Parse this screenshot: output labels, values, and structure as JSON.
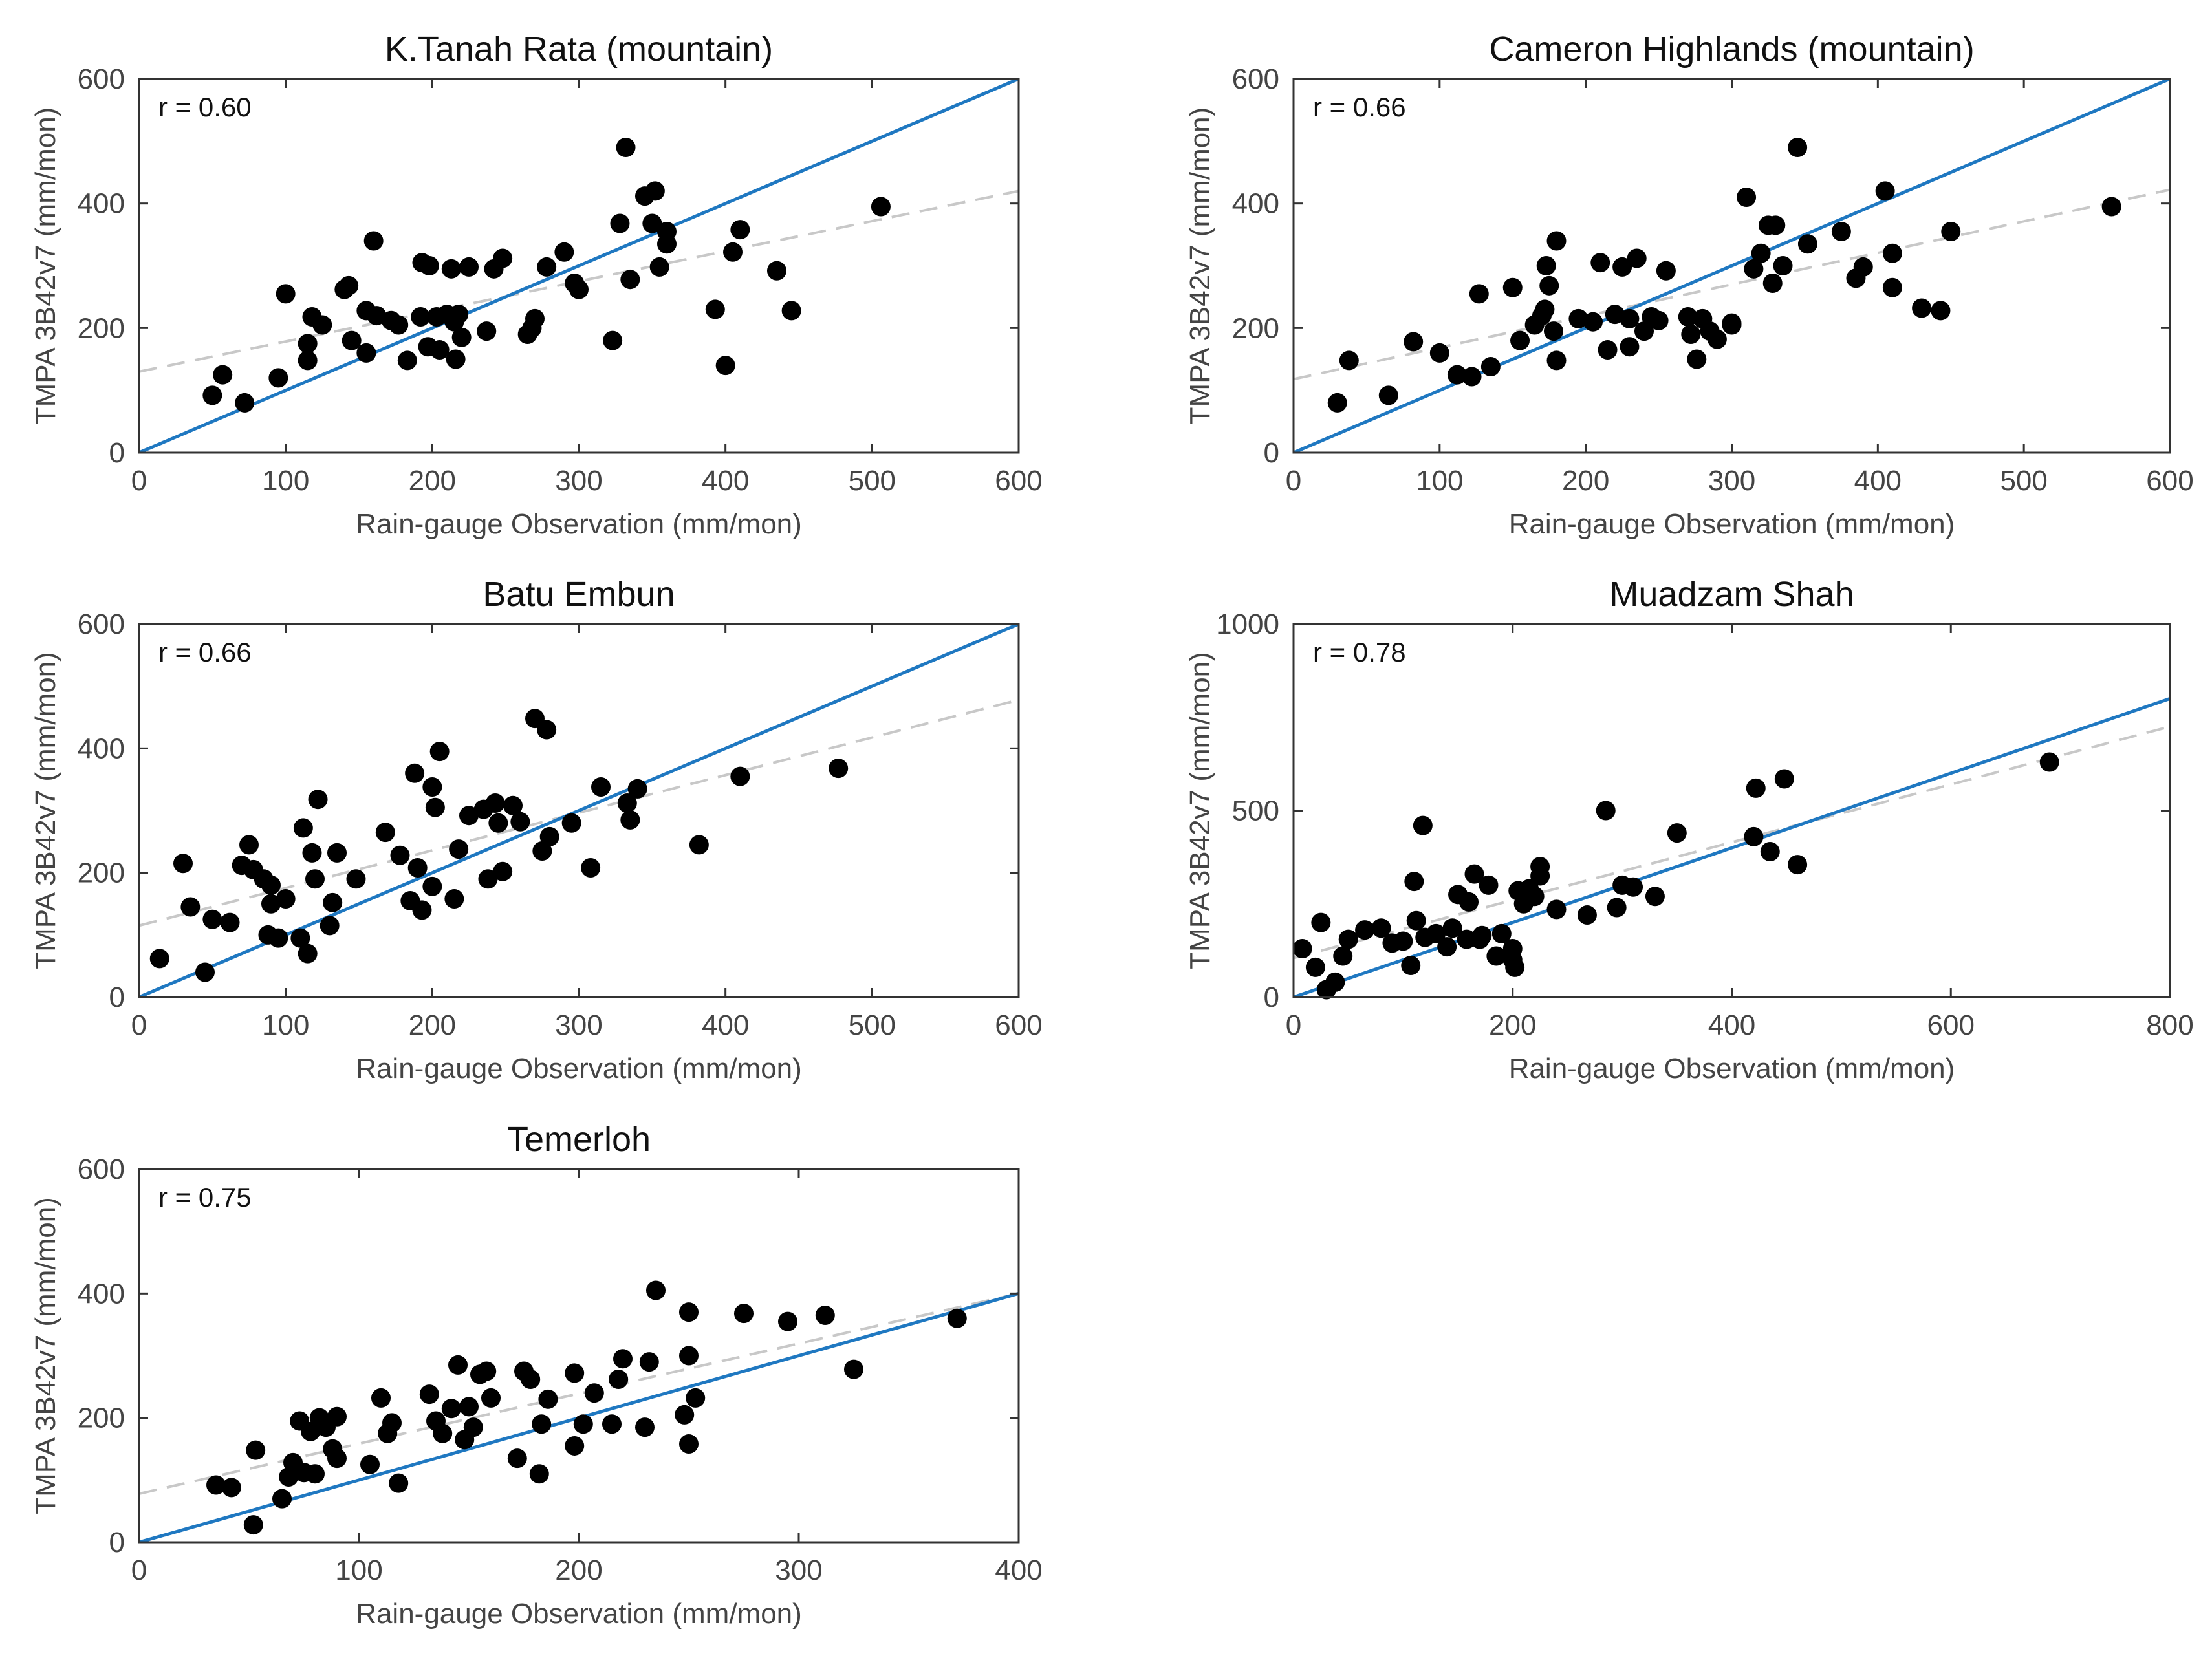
{
  "chart_data": [
    {
      "type": "scatter",
      "title": "K.Tanah Rata (mountain)",
      "xlabel": "Rain-gauge Observation (mm/mon)",
      "ylabel": "TMPA 3B42v7 (mm/mon)",
      "xlim": [
        0,
        600
      ],
      "ylim": [
        0,
        600
      ],
      "xticks": [
        0,
        100,
        200,
        300,
        400,
        500,
        600
      ],
      "yticks": [
        0,
        200,
        400,
        600
      ],
      "r_label": "r = 0.60",
      "one_to_one": [
        [
          0,
          0
        ],
        [
          600,
          600
        ]
      ],
      "fit_line": [
        [
          0,
          130
        ],
        [
          600,
          420
        ]
      ],
      "points": [
        [
          50,
          92
        ],
        [
          57,
          125
        ],
        [
          72,
          80
        ],
        [
          95,
          120
        ],
        [
          100,
          255
        ],
        [
          115,
          148
        ],
        [
          115,
          175
        ],
        [
          118,
          218
        ],
        [
          125,
          205
        ],
        [
          140,
          262
        ],
        [
          143,
          268
        ],
        [
          145,
          180
        ],
        [
          155,
          228
        ],
        [
          155,
          160
        ],
        [
          160,
          340
        ],
        [
          162,
          220
        ],
        [
          172,
          212
        ],
        [
          177,
          205
        ],
        [
          183,
          148
        ],
        [
          192,
          218
        ],
        [
          193,
          305
        ],
        [
          197,
          170
        ],
        [
          198,
          300
        ],
        [
          203,
          218
        ],
        [
          205,
          165
        ],
        [
          210,
          222
        ],
        [
          213,
          295
        ],
        [
          215,
          210
        ],
        [
          216,
          150
        ],
        [
          218,
          222
        ],
        [
          220,
          185
        ],
        [
          225,
          298
        ],
        [
          237,
          195
        ],
        [
          242,
          295
        ],
        [
          248,
          312
        ],
        [
          265,
          190
        ],
        [
          268,
          200
        ],
        [
          270,
          215
        ],
        [
          278,
          298
        ],
        [
          290,
          322
        ],
        [
          297,
          272
        ],
        [
          300,
          262
        ],
        [
          323,
          180
        ],
        [
          328,
          368
        ],
        [
          332,
          490
        ],
        [
          335,
          278
        ],
        [
          345,
          412
        ],
        [
          350,
          368
        ],
        [
          352,
          420
        ],
        [
          355,
          298
        ],
        [
          360,
          355
        ],
        [
          360,
          335
        ],
        [
          393,
          230
        ],
        [
          400,
          140
        ],
        [
          405,
          322
        ],
        [
          410,
          358
        ],
        [
          435,
          292
        ],
        [
          445,
          228
        ],
        [
          506,
          395
        ]
      ]
    },
    {
      "type": "scatter",
      "title": "Cameron Highlands (mountain)",
      "xlabel": "Rain-gauge Observation (mm/mon)",
      "ylabel": "TMPA 3B42v7 (mm/mon)",
      "xlim": [
        0,
        600
      ],
      "ylim": [
        0,
        600
      ],
      "xticks": [
        0,
        100,
        200,
        300,
        400,
        500,
        600
      ],
      "yticks": [
        0,
        200,
        400,
        600
      ],
      "r_label": "r = 0.66",
      "one_to_one": [
        [
          0,
          0
        ],
        [
          600,
          600
        ]
      ],
      "fit_line": [
        [
          0,
          118
        ],
        [
          600,
          422
        ]
      ],
      "points": [
        [
          30,
          80
        ],
        [
          38,
          148
        ],
        [
          65,
          92
        ],
        [
          82,
          178
        ],
        [
          100,
          160
        ],
        [
          112,
          125
        ],
        [
          122,
          122
        ],
        [
          127,
          255
        ],
        [
          135,
          138
        ],
        [
          150,
          265
        ],
        [
          155,
          180
        ],
        [
          165,
          205
        ],
        [
          170,
          220
        ],
        [
          172,
          230
        ],
        [
          173,
          300
        ],
        [
          175,
          268
        ],
        [
          178,
          195
        ],
        [
          180,
          340
        ],
        [
          180,
          148
        ],
        [
          195,
          215
        ],
        [
          205,
          210
        ],
        [
          210,
          305
        ],
        [
          215,
          165
        ],
        [
          220,
          222
        ],
        [
          225,
          298
        ],
        [
          230,
          215
        ],
        [
          230,
          170
        ],
        [
          235,
          312
        ],
        [
          240,
          195
        ],
        [
          245,
          218
        ],
        [
          250,
          212
        ],
        [
          255,
          292
        ],
        [
          270,
          218
        ],
        [
          272,
          190
        ],
        [
          276,
          150
        ],
        [
          280,
          215
        ],
        [
          285,
          195
        ],
        [
          290,
          182
        ],
        [
          300,
          208
        ],
        [
          300,
          205
        ],
        [
          310,
          410
        ],
        [
          315,
          295
        ],
        [
          320,
          320
        ],
        [
          325,
          365
        ],
        [
          328,
          272
        ],
        [
          330,
          365
        ],
        [
          335,
          300
        ],
        [
          345,
          490
        ],
        [
          352,
          335
        ],
        [
          375,
          355
        ],
        [
          385,
          280
        ],
        [
          390,
          298
        ],
        [
          405,
          420
        ],
        [
          410,
          320
        ],
        [
          410,
          265
        ],
        [
          430,
          232
        ],
        [
          443,
          228
        ],
        [
          450,
          355
        ],
        [
          560,
          395
        ]
      ]
    },
    {
      "type": "scatter",
      "title": "Batu Embun",
      "xlabel": "Rain-gauge Observation (mm/mon)",
      "ylabel": "TMPA 3B42v7 (mm/mon)",
      "xlim": [
        0,
        600
      ],
      "ylim": [
        0,
        600
      ],
      "xticks": [
        0,
        100,
        200,
        300,
        400,
        500,
        600
      ],
      "yticks": [
        0,
        200,
        400,
        600
      ],
      "r_label": "r = 0.66",
      "one_to_one": [
        [
          0,
          0
        ],
        [
          600,
          600
        ]
      ],
      "fit_line": [
        [
          0,
          115
        ],
        [
          600,
          478
        ]
      ],
      "points": [
        [
          14,
          62
        ],
        [
          30,
          215
        ],
        [
          35,
          145
        ],
        [
          45,
          40
        ],
        [
          50,
          125
        ],
        [
          62,
          120
        ],
        [
          70,
          212
        ],
        [
          75,
          245
        ],
        [
          78,
          205
        ],
        [
          85,
          190
        ],
        [
          88,
          100
        ],
        [
          90,
          180
        ],
        [
          90,
          150
        ],
        [
          95,
          95
        ],
        [
          100,
          158
        ],
        [
          110,
          95
        ],
        [
          112,
          272
        ],
        [
          115,
          70
        ],
        [
          118,
          232
        ],
        [
          120,
          190
        ],
        [
          122,
          318
        ],
        [
          130,
          115
        ],
        [
          132,
          152
        ],
        [
          135,
          232
        ],
        [
          148,
          190
        ],
        [
          168,
          265
        ],
        [
          178,
          228
        ],
        [
          185,
          155
        ],
        [
          188,
          360
        ],
        [
          190,
          208
        ],
        [
          193,
          140
        ],
        [
          200,
          178
        ],
        [
          200,
          338
        ],
        [
          202,
          305
        ],
        [
          205,
          395
        ],
        [
          215,
          158
        ],
        [
          218,
          238
        ],
        [
          225,
          292
        ],
        [
          235,
          302
        ],
        [
          238,
          190
        ],
        [
          243,
          312
        ],
        [
          245,
          280
        ],
        [
          248,
          202
        ],
        [
          255,
          308
        ],
        [
          260,
          282
        ],
        [
          270,
          448
        ],
        [
          275,
          235
        ],
        [
          278,
          430
        ],
        [
          280,
          258
        ],
        [
          295,
          280
        ],
        [
          308,
          208
        ],
        [
          315,
          338
        ],
        [
          333,
          312
        ],
        [
          335,
          285
        ],
        [
          340,
          335
        ],
        [
          382,
          245
        ],
        [
          410,
          355
        ],
        [
          477,
          368
        ]
      ]
    },
    {
      "type": "scatter",
      "title": "Muadzam Shah",
      "xlabel": "Rain-gauge Observation (mm/mon)",
      "ylabel": "TMPA 3B42v7 (mm/mon)",
      "xlim": [
        0,
        800
      ],
      "ylim": [
        0,
        1000
      ],
      "xticks": [
        0,
        200,
        400,
        600,
        800
      ],
      "yticks": [
        0,
        500,
        1000
      ],
      "r_label": "r = 0.78",
      "one_to_one": [
        [
          0,
          0
        ],
        [
          800,
          800
        ]
      ],
      "fit_line": [
        [
          0,
          105
        ],
        [
          800,
          725
        ]
      ],
      "points": [
        [
          8,
          130
        ],
        [
          20,
          80
        ],
        [
          25,
          200
        ],
        [
          30,
          20
        ],
        [
          38,
          40
        ],
        [
          45,
          110
        ],
        [
          50,
          155
        ],
        [
          65,
          180
        ],
        [
          80,
          185
        ],
        [
          90,
          145
        ],
        [
          100,
          150
        ],
        [
          107,
          85
        ],
        [
          110,
          310
        ],
        [
          112,
          205
        ],
        [
          118,
          460
        ],
        [
          120,
          160
        ],
        [
          130,
          170
        ],
        [
          140,
          135
        ],
        [
          145,
          185
        ],
        [
          150,
          275
        ],
        [
          158,
          155
        ],
        [
          160,
          255
        ],
        [
          165,
          330
        ],
        [
          170,
          155
        ],
        [
          172,
          165
        ],
        [
          178,
          300
        ],
        [
          185,
          110
        ],
        [
          190,
          170
        ],
        [
          200,
          100
        ],
        [
          200,
          130
        ],
        [
          202,
          80
        ],
        [
          205,
          285
        ],
        [
          210,
          250
        ],
        [
          215,
          290
        ],
        [
          220,
          270
        ],
        [
          225,
          350
        ],
        [
          225,
          325
        ],
        [
          240,
          235
        ],
        [
          268,
          220
        ],
        [
          285,
          500
        ],
        [
          295,
          240
        ],
        [
          300,
          300
        ],
        [
          310,
          295
        ],
        [
          330,
          270
        ],
        [
          350,
          440
        ],
        [
          420,
          430
        ],
        [
          422,
          560
        ],
        [
          435,
          390
        ],
        [
          448,
          585
        ],
        [
          460,
          355
        ],
        [
          690,
          630
        ]
      ]
    },
    {
      "type": "scatter",
      "title": "Temerloh",
      "xlabel": "Rain-gauge Observation (mm/mon)",
      "ylabel": "TMPA 3B42v7 (mm/mon)",
      "xlim": [
        0,
        400
      ],
      "ylim": [
        0,
        600
      ],
      "xticks": [
        0,
        100,
        200,
        300,
        400
      ],
      "yticks": [
        0,
        200,
        400,
        600
      ],
      "r_label": "r = 0.75",
      "one_to_one": [
        [
          0,
          0
        ],
        [
          400,
          400
        ]
      ],
      "fit_line": [
        [
          0,
          78
        ],
        [
          400,
          400
        ]
      ],
      "points": [
        [
          35,
          92
        ],
        [
          42,
          88
        ],
        [
          52,
          28
        ],
        [
          53,
          148
        ],
        [
          65,
          70
        ],
        [
          68,
          105
        ],
        [
          70,
          128
        ],
        [
          73,
          195
        ],
        [
          75,
          112
        ],
        [
          78,
          178
        ],
        [
          80,
          110
        ],
        [
          82,
          200
        ],
        [
          85,
          185
        ],
        [
          88,
          150
        ],
        [
          90,
          135
        ],
        [
          90,
          202
        ],
        [
          105,
          125
        ],
        [
          110,
          232
        ],
        [
          113,
          175
        ],
        [
          115,
          192
        ],
        [
          118,
          95
        ],
        [
          132,
          238
        ],
        [
          135,
          195
        ],
        [
          138,
          175
        ],
        [
          142,
          215
        ],
        [
          145,
          285
        ],
        [
          148,
          165
        ],
        [
          150,
          218
        ],
        [
          152,
          185
        ],
        [
          155,
          270
        ],
        [
          158,
          275
        ],
        [
          160,
          232
        ],
        [
          172,
          135
        ],
        [
          175,
          275
        ],
        [
          178,
          262
        ],
        [
          182,
          110
        ],
        [
          183,
          190
        ],
        [
          186,
          230
        ],
        [
          198,
          155
        ],
        [
          198,
          272
        ],
        [
          202,
          190
        ],
        [
          207,
          240
        ],
        [
          215,
          190
        ],
        [
          218,
          262
        ],
        [
          220,
          295
        ],
        [
          230,
          185
        ],
        [
          232,
          290
        ],
        [
          235,
          405
        ],
        [
          248,
          205
        ],
        [
          250,
          158
        ],
        [
          250,
          370
        ],
        [
          250,
          300
        ],
        [
          253,
          232
        ],
        [
          275,
          368
        ],
        [
          295,
          355
        ],
        [
          312,
          365
        ],
        [
          325,
          278
        ],
        [
          372,
          360
        ]
      ]
    }
  ],
  "colors": {
    "one_to_one_line": "#1f78c1",
    "fit_line": "#c8c8c8",
    "markers": "#000000",
    "frame": "#333333"
  }
}
